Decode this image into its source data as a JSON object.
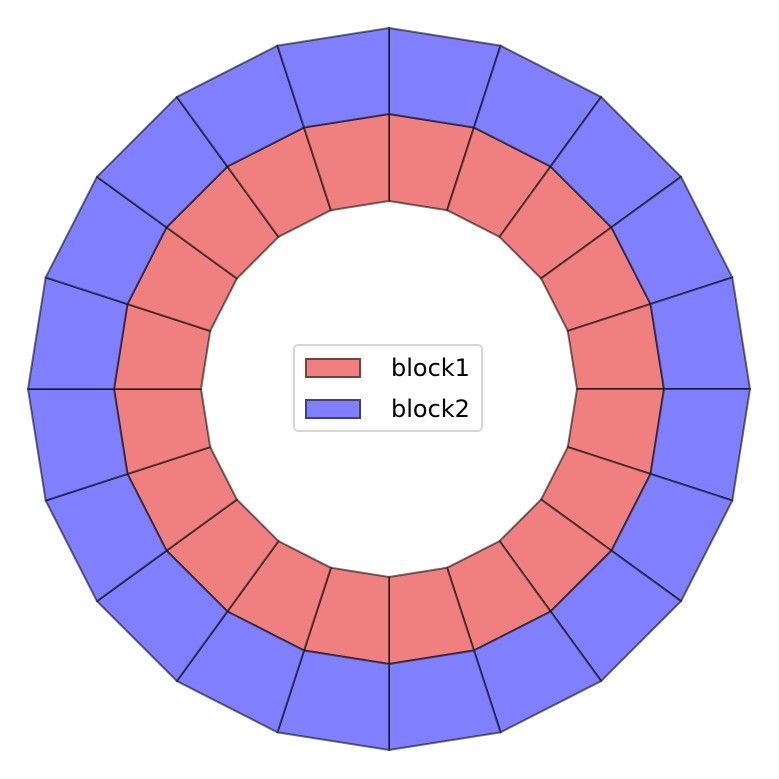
{
  "chart_data": {
    "type": "mesh",
    "segments_per_ring": 20,
    "blocks": [
      {
        "name": "block1",
        "color": "#f08080",
        "ring": "inner"
      },
      {
        "name": "block2",
        "color": "#8080ff",
        "ring": "outer"
      }
    ],
    "edge_color": "#000000",
    "legend": {
      "placement": "center",
      "entries": [
        "block1",
        "block2"
      ]
    }
  }
}
